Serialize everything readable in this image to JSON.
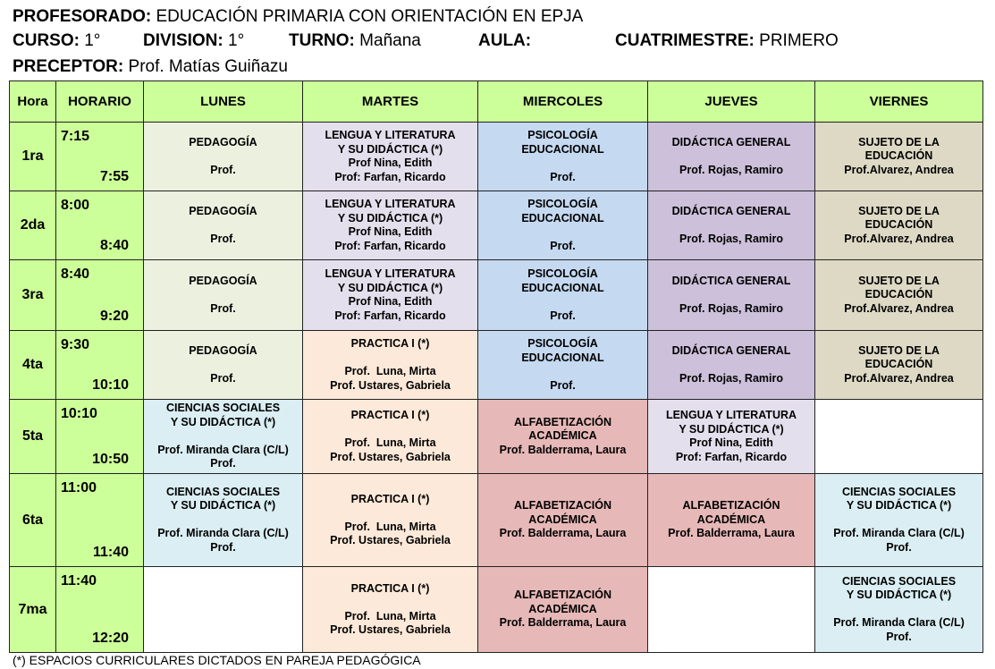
{
  "header": {
    "profesorado_label": "PROFESORADO:",
    "profesorado": "EDUCACIÓN PRIMARIA CON ORIENTACIÓN EN EPJA",
    "curso_label": "CURSO:",
    "curso": "1°",
    "division_label": "DIVISION:",
    "division": "1°",
    "turno_label": "TURNO:",
    "turno": "Mañana",
    "aula_label": "AULA:",
    "aula": "",
    "cuatrimestre_label": "CUATRIMESTRE:",
    "cuatrimestre": "PRIMERO",
    "preceptor_label": "PRECEPTOR:",
    "preceptor": "Prof. Matías Guiñazu"
  },
  "columns": [
    "Hora",
    "HORARIO",
    "LUNES",
    "MARTES",
    "MIERCOLES",
    "JUEVES",
    "VIERNES"
  ],
  "colors": {
    "header": "#ccff99",
    "pedagogia": "#ebf1de",
    "lengua": "#e4dfec",
    "psicologia": "#c5d9f1",
    "didactica": "#ccc0da",
    "sujeto": "#ddd9c4",
    "practica": "#fde9d9",
    "alfabetizacion": "#e6b8b7",
    "ciencias": "#daeef3",
    "empty": "#ffffff"
  },
  "subjects": {
    "pedagogia": [
      "PEDAGOGÍA",
      "",
      "Prof."
    ],
    "lengua": [
      "LENGUA Y LITERATURA",
      "Y SU DIDÁCTICA (*)",
      "Prof Nina, Edith",
      "Prof: Farfan, Ricardo"
    ],
    "psicologia": [
      "PSICOLOGÍA",
      "EDUCACIONAL",
      "",
      "Prof."
    ],
    "didactica": [
      "DIDÁCTICA GENERAL",
      "",
      "Prof. Rojas, Ramiro"
    ],
    "sujeto": [
      "SUJETO DE LA",
      "EDUCACIÓN",
      "Prof.Alvarez, Andrea"
    ],
    "practica": [
      "PRACTICA I (*)",
      "",
      "Prof.  Luna, Mirta",
      "Prof. Ustares, Gabriela"
    ],
    "ciencias": [
      "CIENCIAS SOCIALES",
      "Y SU DIDÁCTICA (*)",
      "",
      "Prof. Miranda Clara (C/L)",
      "Prof."
    ],
    "alfabetizacion": [
      "ALFABETIZACIÓN",
      "ACADÉMICA",
      "Prof. Balderrama, Laura"
    ]
  },
  "rows": [
    {
      "hora": "1ra",
      "start": "7:15",
      "end": "7:55",
      "cells": [
        "pedagogia",
        "lengua",
        "psicologia",
        "didactica",
        "sujeto"
      ]
    },
    {
      "hora": "2da",
      "start": "8:00",
      "end": "8:40",
      "cells": [
        "pedagogia",
        "lengua",
        "psicologia",
        "didactica",
        "sujeto"
      ]
    },
    {
      "hora": "3ra",
      "start": "8:40",
      "end": "9:20",
      "cells": [
        "pedagogia",
        "lengua",
        "psicologia",
        "didactica",
        "sujeto"
      ]
    },
    {
      "hora": "4ta",
      "start": "9:30",
      "end": "10:10",
      "cells": [
        "pedagogia",
        "practica",
        "psicologia",
        "didactica",
        "sujeto"
      ]
    },
    {
      "hora": "5ta",
      "start": "10:10",
      "end": "10:50",
      "cells": [
        "ciencias",
        "practica",
        "alfabetizacion",
        "lengua",
        "empty"
      ]
    },
    {
      "hora": "6ta",
      "start": "11:00",
      "end": "11:40",
      "cells": [
        "ciencias",
        "practica",
        "alfabetizacion",
        "alfabetizacion",
        "ciencias"
      ]
    },
    {
      "hora": "7ma",
      "start": "11:40",
      "end": "12:20",
      "cells": [
        "empty",
        "practica",
        "alfabetizacion",
        "empty",
        "ciencias"
      ]
    }
  ],
  "footnote": "(*) ESPACIOS CURRICULARES DICTADOS EN PAREJA PEDAGÓGICA"
}
